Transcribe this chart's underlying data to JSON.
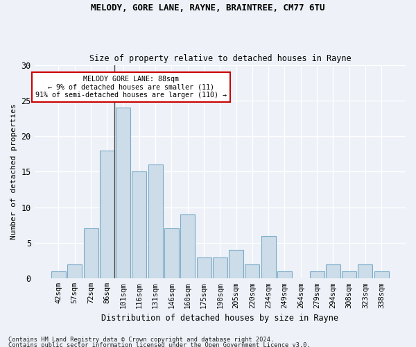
{
  "title1": "MELODY, GORE LANE, RAYNE, BRAINTREE, CM77 6TU",
  "title2": "Size of property relative to detached houses in Rayne",
  "xlabel": "Distribution of detached houses by size in Rayne",
  "ylabel": "Number of detached properties",
  "categories": [
    "42sqm",
    "57sqm",
    "72sqm",
    "86sqm",
    "101sqm",
    "116sqm",
    "131sqm",
    "146sqm",
    "160sqm",
    "175sqm",
    "190sqm",
    "205sqm",
    "220sqm",
    "234sqm",
    "249sqm",
    "264sqm",
    "279sqm",
    "294sqm",
    "308sqm",
    "323sqm",
    "338sqm"
  ],
  "values": [
    1,
    2,
    7,
    18,
    24,
    15,
    16,
    7,
    9,
    3,
    3,
    4,
    2,
    6,
    1,
    0,
    1,
    2,
    1,
    2,
    1
  ],
  "bar_color": "#ccdce8",
  "bar_edge_color": "#7aaac8",
  "vline_index": 3,
  "ylim": [
    0,
    30
  ],
  "yticks": [
    0,
    5,
    10,
    15,
    20,
    25,
    30
  ],
  "annotation_text": "MELODY GORE LANE: 88sqm\n← 9% of detached houses are smaller (11)\n91% of semi-detached houses are larger (110) →",
  "footnote1": "Contains HM Land Registry data © Crown copyright and database right 2024.",
  "footnote2": "Contains public sector information licensed under the Open Government Licence v3.0.",
  "background_color": "#eef2f8",
  "grid_color": "#ffffff",
  "annotation_box_facecolor": "#ffffff",
  "annotation_box_edgecolor": "#cc0000"
}
